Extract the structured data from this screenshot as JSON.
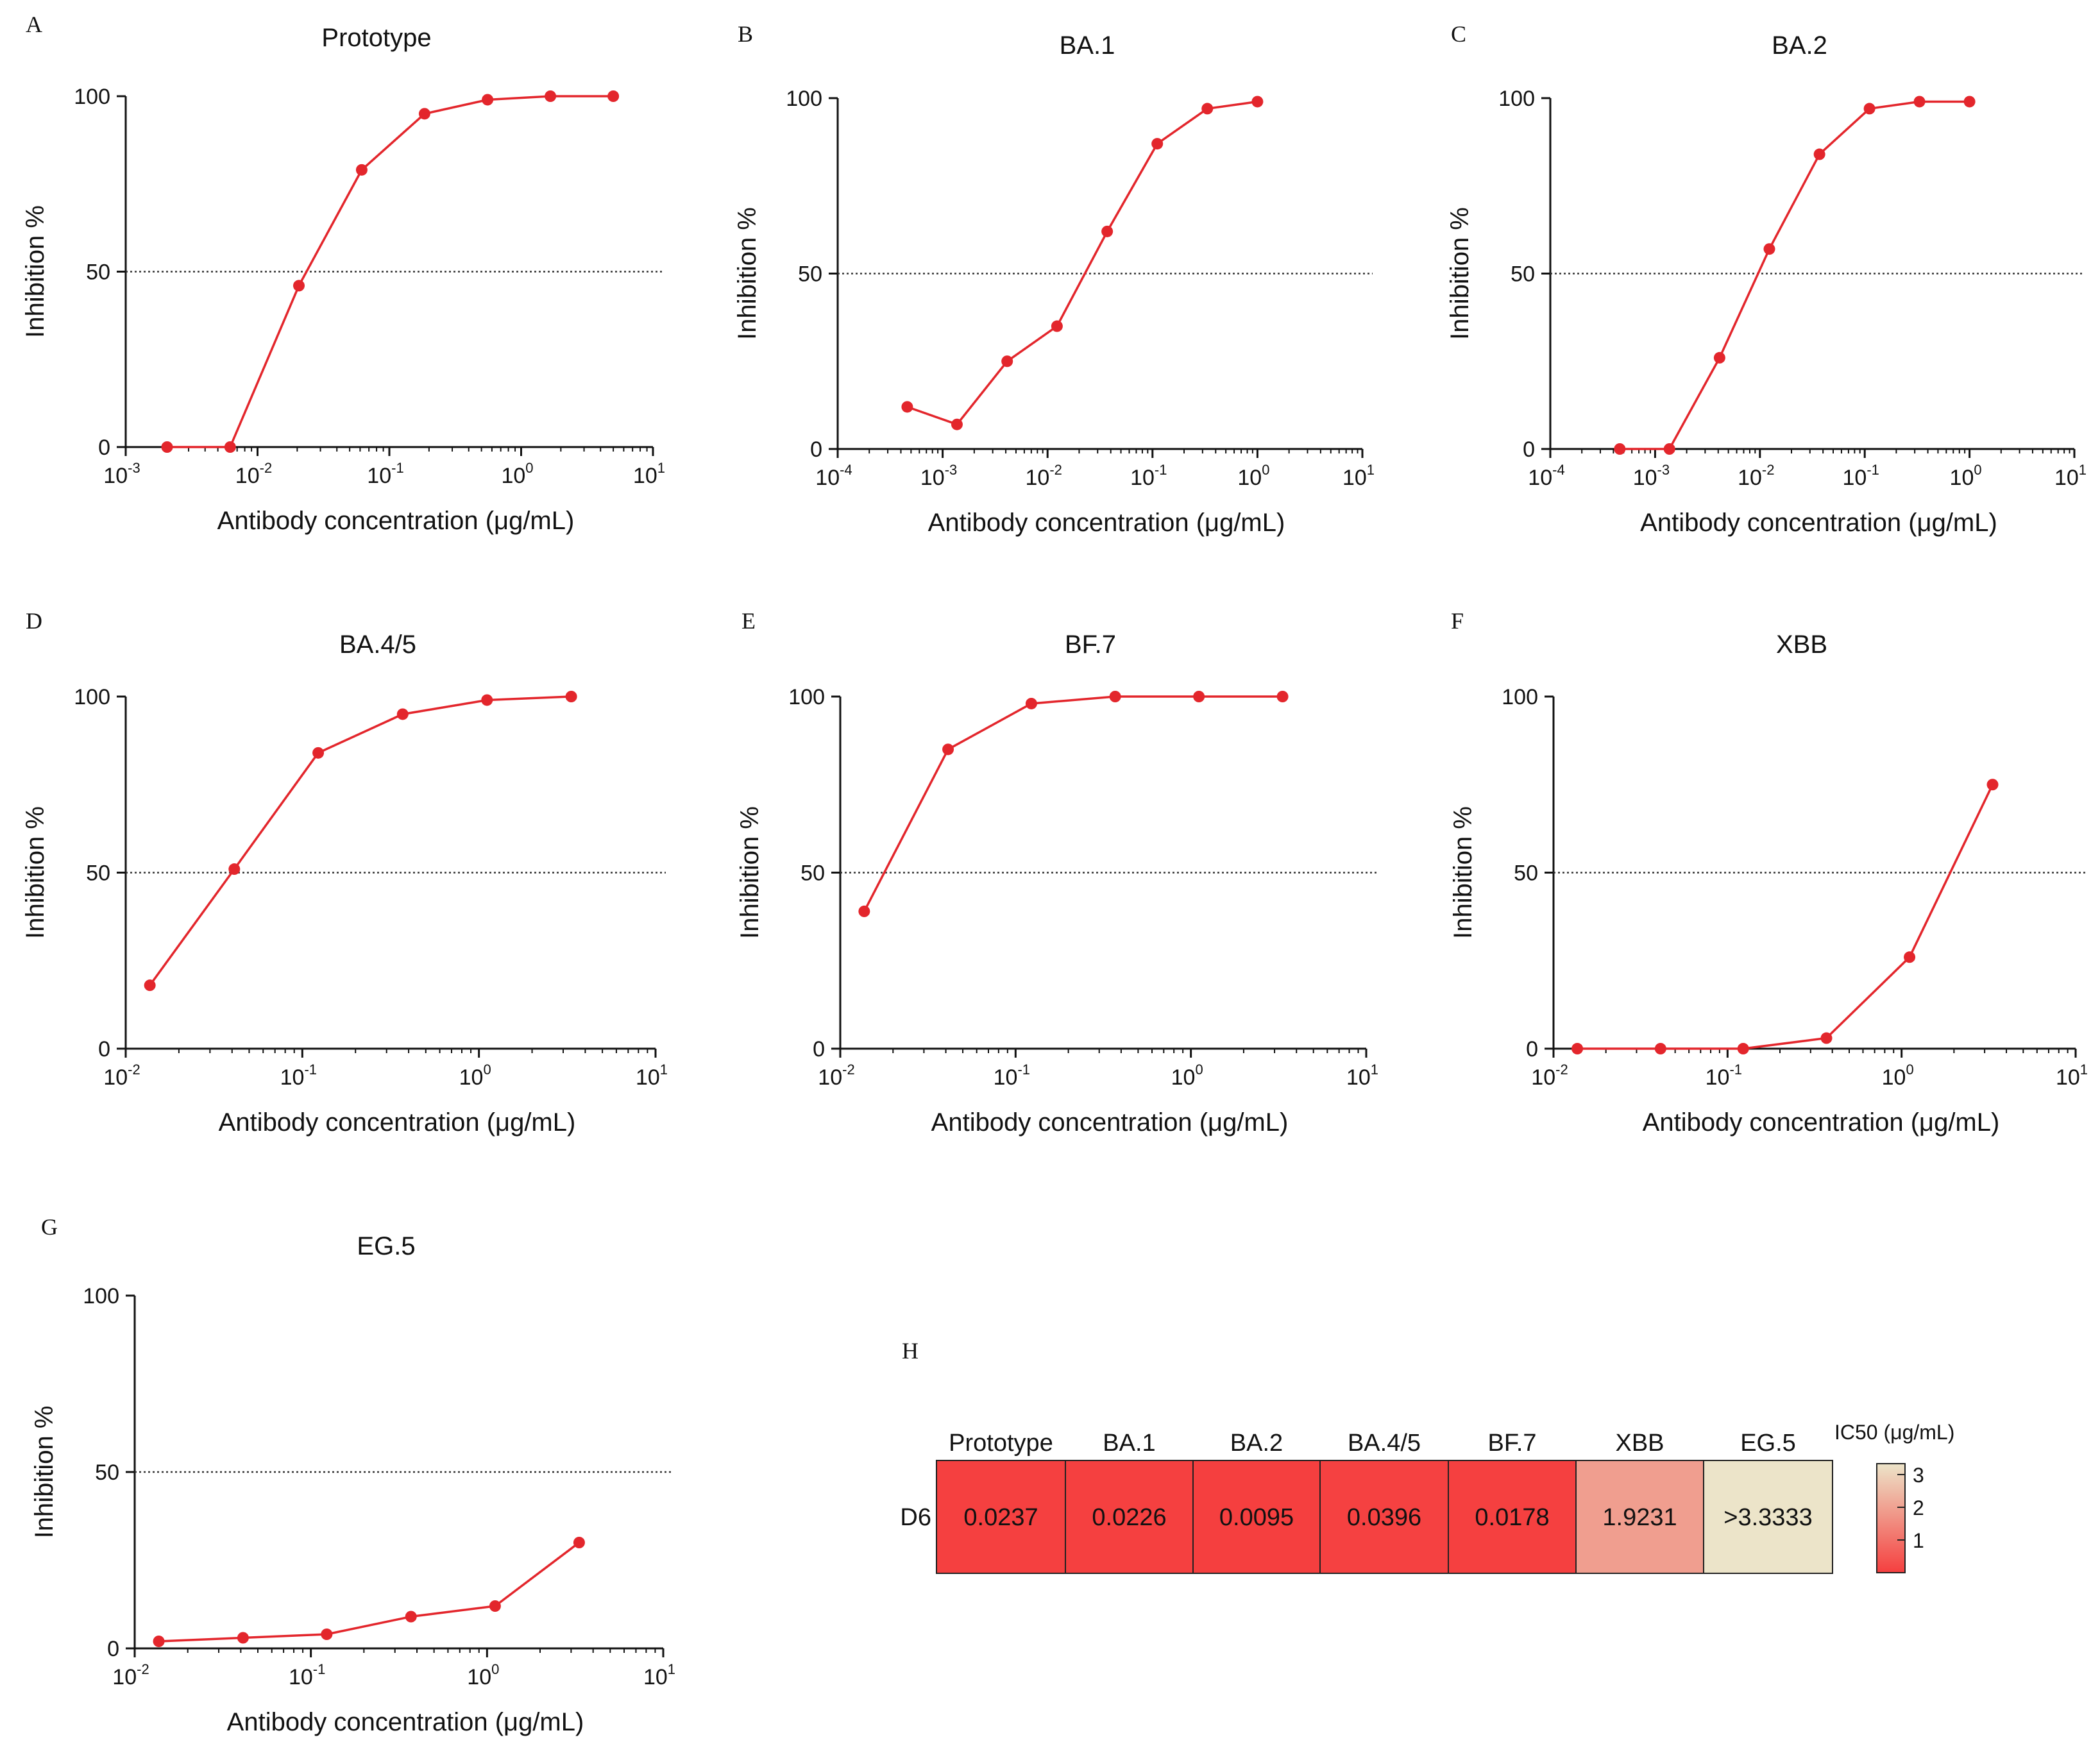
{
  "figure": {
    "series_color": "#e3262c",
    "ref_line_color": "#333333"
  },
  "chart_data": [
    {
      "type": "line",
      "panel": "A",
      "title": "Prototype",
      "xlabel": "Antibody concentration (μg/mL)",
      "ylabel": "Inhibition %",
      "xscale": "log",
      "xlim_exp": [
        -3,
        1
      ],
      "x_ticks": [
        {
          "base": "10",
          "exp": "-3"
        },
        {
          "base": "10",
          "exp": "-2"
        },
        {
          "base": "10",
          "exp": "-1"
        },
        {
          "base": "10",
          "exp": "0"
        },
        {
          "base": "10",
          "exp": "1"
        }
      ],
      "ylim": [
        0,
        100
      ],
      "y_ticks": [
        "0",
        "50",
        "100"
      ],
      "reference_line": 50,
      "series": [
        {
          "name": "D6",
          "x": [
            0.00206,
            0.0062,
            0.0206,
            0.0617,
            0.185,
            0.556,
            1.667,
            5.0
          ],
          "y": [
            0,
            0,
            46,
            79,
            95,
            99,
            100,
            100
          ]
        }
      ]
    },
    {
      "type": "line",
      "panel": "B",
      "title": "BA.1",
      "xlabel": "Antibody concentration (μg/mL)",
      "ylabel": "Inhibition %",
      "xscale": "log",
      "xlim_exp": [
        -4,
        1
      ],
      "x_ticks": [
        {
          "base": "10",
          "exp": "-4"
        },
        {
          "base": "10",
          "exp": "-3"
        },
        {
          "base": "10",
          "exp": "-2"
        },
        {
          "base": "10",
          "exp": "-1"
        },
        {
          "base": "10",
          "exp": "0"
        },
        {
          "base": "10",
          "exp": "1"
        }
      ],
      "ylim": [
        0,
        100
      ],
      "y_ticks": [
        "0",
        "50",
        "100"
      ],
      "reference_line": 50,
      "series": [
        {
          "name": "D6",
          "x": [
            0.00046,
            0.00137,
            0.00412,
            0.0123,
            0.037,
            0.111,
            0.333,
            1.0
          ],
          "y": [
            12,
            7,
            25,
            35,
            62,
            87,
            97,
            99
          ]
        }
      ]
    },
    {
      "type": "line",
      "panel": "C",
      "title": "BA.2",
      "xlabel": "Antibody concentration (μg/mL)",
      "ylabel": "Inhibition %",
      "xscale": "log",
      "xlim_exp": [
        -4,
        1
      ],
      "x_ticks": [
        {
          "base": "10",
          "exp": "-4"
        },
        {
          "base": "10",
          "exp": "-3"
        },
        {
          "base": "10",
          "exp": "-2"
        },
        {
          "base": "10",
          "exp": "-1"
        },
        {
          "base": "10",
          "exp": "0"
        },
        {
          "base": "10",
          "exp": "1"
        }
      ],
      "ylim": [
        0,
        100
      ],
      "y_ticks": [
        "0",
        "50",
        "100"
      ],
      "reference_line": 50,
      "series": [
        {
          "name": "D6",
          "x": [
            0.00046,
            0.00137,
            0.00412,
            0.0123,
            0.037,
            0.111,
            0.333,
            1.0
          ],
          "y": [
            0,
            0,
            26,
            57,
            84,
            97,
            99,
            99
          ]
        }
      ]
    },
    {
      "type": "line",
      "panel": "D",
      "title": "BA.4/5",
      "xlabel": "Antibody concentration (μg/mL)",
      "ylabel": "Inhibition %",
      "xscale": "log",
      "xlim_exp": [
        -2,
        1
      ],
      "x_ticks": [
        {
          "base": "10",
          "exp": "-2"
        },
        {
          "base": "10",
          "exp": "-1"
        },
        {
          "base": "10",
          "exp": "0"
        },
        {
          "base": "10",
          "exp": "1"
        }
      ],
      "ylim": [
        0,
        100
      ],
      "y_ticks": [
        "0",
        "50",
        "100"
      ],
      "reference_line": 50,
      "series": [
        {
          "name": "D6",
          "x": [
            0.0137,
            0.0412,
            0.123,
            0.37,
            1.111,
            3.333
          ],
          "y": [
            18,
            51,
            84,
            95,
            99,
            100
          ]
        }
      ]
    },
    {
      "type": "line",
      "panel": "E",
      "title": "BF.7",
      "xlabel": "Antibody concentration (μg/mL)",
      "ylabel": "Inhibition %",
      "xscale": "log",
      "xlim_exp": [
        -2,
        1
      ],
      "x_ticks": [
        {
          "base": "10",
          "exp": "-2"
        },
        {
          "base": "10",
          "exp": "-1"
        },
        {
          "base": "10",
          "exp": "0"
        },
        {
          "base": "10",
          "exp": "1"
        }
      ],
      "ylim": [
        0,
        100
      ],
      "y_ticks": [
        "0",
        "50",
        "100"
      ],
      "reference_line": 50,
      "series": [
        {
          "name": "D6",
          "x": [
            0.0137,
            0.0412,
            0.123,
            0.37,
            1.111,
            3.333
          ],
          "y": [
            39,
            85,
            98,
            100,
            100,
            100
          ]
        }
      ]
    },
    {
      "type": "line",
      "panel": "F",
      "title": "XBB",
      "xlabel": "Antibody concentration (μg/mL)",
      "ylabel": "Inhibition %",
      "xscale": "log",
      "xlim_exp": [
        -2,
        1
      ],
      "x_ticks": [
        {
          "base": "10",
          "exp": "-2"
        },
        {
          "base": "10",
          "exp": "-1"
        },
        {
          "base": "10",
          "exp": "0"
        },
        {
          "base": "10",
          "exp": "1"
        }
      ],
      "ylim": [
        0,
        100
      ],
      "y_ticks": [
        "0",
        "50",
        "100"
      ],
      "reference_line": 50,
      "series": [
        {
          "name": "D6",
          "x": [
            0.0137,
            0.0412,
            0.123,
            0.37,
            1.111,
            3.333
          ],
          "y": [
            0,
            0,
            0,
            3,
            26,
            75
          ]
        }
      ]
    },
    {
      "type": "line",
      "panel": "G",
      "title": "EG.5",
      "xlabel": "Antibody concentration (μg/mL)",
      "ylabel": "Inhibition %",
      "xscale": "log",
      "xlim_exp": [
        -2,
        1
      ],
      "x_ticks": [
        {
          "base": "10",
          "exp": "-2"
        },
        {
          "base": "10",
          "exp": "-1"
        },
        {
          "base": "10",
          "exp": "0"
        },
        {
          "base": "10",
          "exp": "1"
        }
      ],
      "ylim": [
        0,
        100
      ],
      "y_ticks": [
        "0",
        "50",
        "100"
      ],
      "reference_line": 50,
      "series": [
        {
          "name": "D6",
          "x": [
            0.0137,
            0.0412,
            0.123,
            0.37,
            1.111,
            3.333
          ],
          "y": [
            2,
            3,
            4,
            9,
            12,
            30
          ]
        }
      ]
    },
    {
      "type": "heatmap",
      "panel": "H",
      "columns": [
        "Prototype",
        "BA.1",
        "BA.2",
        "BA.4/5",
        "BF.7",
        "XBB",
        "EG.5"
      ],
      "rows": [
        {
          "label": "D6",
          "values": [
            0.0237,
            0.0226,
            0.0095,
            0.0396,
            0.0178,
            1.9231,
            3.3333
          ],
          "display": [
            "0.0237",
            "0.0226",
            "0.0095",
            "0.0396",
            "0.0178",
            "1.9231",
            ">3.3333"
          ]
        }
      ],
      "colorbar": {
        "title": "IC50 (μg/mL)",
        "ticks": [
          "1",
          "2",
          "3"
        ],
        "range": [
          0,
          3.3333
        ],
        "low_color": "#f53f3f",
        "high_color": "#ece4c9"
      }
    }
  ]
}
